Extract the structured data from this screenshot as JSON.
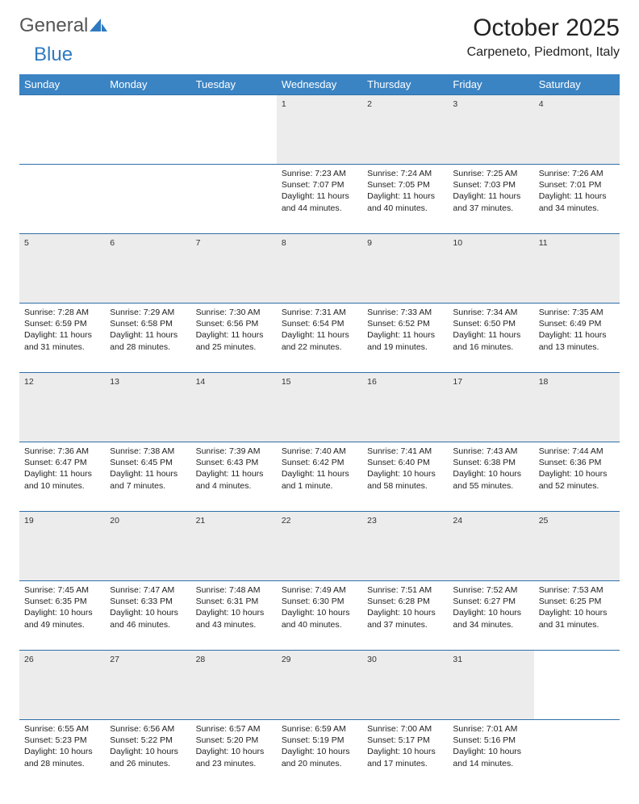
{
  "brand": {
    "part1": "General",
    "part2": "Blue"
  },
  "title": "October 2025",
  "location": "Carpeneto, Piedmont, Italy",
  "colors": {
    "header_bg": "#3b84c4",
    "header_text": "#ffffff",
    "daynum_bg": "#ececec",
    "rule": "#2f6fa8",
    "logo_blue": "#2f7ac0"
  },
  "weekdays": [
    "Sunday",
    "Monday",
    "Tuesday",
    "Wednesday",
    "Thursday",
    "Friday",
    "Saturday"
  ],
  "weeks": [
    [
      null,
      null,
      null,
      {
        "n": "1",
        "sr": "Sunrise: 7:23 AM",
        "ss": "Sunset: 7:07 PM",
        "d1": "Daylight: 11 hours",
        "d2": "and 44 minutes."
      },
      {
        "n": "2",
        "sr": "Sunrise: 7:24 AM",
        "ss": "Sunset: 7:05 PM",
        "d1": "Daylight: 11 hours",
        "d2": "and 40 minutes."
      },
      {
        "n": "3",
        "sr": "Sunrise: 7:25 AM",
        "ss": "Sunset: 7:03 PM",
        "d1": "Daylight: 11 hours",
        "d2": "and 37 minutes."
      },
      {
        "n": "4",
        "sr": "Sunrise: 7:26 AM",
        "ss": "Sunset: 7:01 PM",
        "d1": "Daylight: 11 hours",
        "d2": "and 34 minutes."
      }
    ],
    [
      {
        "n": "5",
        "sr": "Sunrise: 7:28 AM",
        "ss": "Sunset: 6:59 PM",
        "d1": "Daylight: 11 hours",
        "d2": "and 31 minutes."
      },
      {
        "n": "6",
        "sr": "Sunrise: 7:29 AM",
        "ss": "Sunset: 6:58 PM",
        "d1": "Daylight: 11 hours",
        "d2": "and 28 minutes."
      },
      {
        "n": "7",
        "sr": "Sunrise: 7:30 AM",
        "ss": "Sunset: 6:56 PM",
        "d1": "Daylight: 11 hours",
        "d2": "and 25 minutes."
      },
      {
        "n": "8",
        "sr": "Sunrise: 7:31 AM",
        "ss": "Sunset: 6:54 PM",
        "d1": "Daylight: 11 hours",
        "d2": "and 22 minutes."
      },
      {
        "n": "9",
        "sr": "Sunrise: 7:33 AM",
        "ss": "Sunset: 6:52 PM",
        "d1": "Daylight: 11 hours",
        "d2": "and 19 minutes."
      },
      {
        "n": "10",
        "sr": "Sunrise: 7:34 AM",
        "ss": "Sunset: 6:50 PM",
        "d1": "Daylight: 11 hours",
        "d2": "and 16 minutes."
      },
      {
        "n": "11",
        "sr": "Sunrise: 7:35 AM",
        "ss": "Sunset: 6:49 PM",
        "d1": "Daylight: 11 hours",
        "d2": "and 13 minutes."
      }
    ],
    [
      {
        "n": "12",
        "sr": "Sunrise: 7:36 AM",
        "ss": "Sunset: 6:47 PM",
        "d1": "Daylight: 11 hours",
        "d2": "and 10 minutes."
      },
      {
        "n": "13",
        "sr": "Sunrise: 7:38 AM",
        "ss": "Sunset: 6:45 PM",
        "d1": "Daylight: 11 hours",
        "d2": "and 7 minutes."
      },
      {
        "n": "14",
        "sr": "Sunrise: 7:39 AM",
        "ss": "Sunset: 6:43 PM",
        "d1": "Daylight: 11 hours",
        "d2": "and 4 minutes."
      },
      {
        "n": "15",
        "sr": "Sunrise: 7:40 AM",
        "ss": "Sunset: 6:42 PM",
        "d1": "Daylight: 11 hours",
        "d2": "and 1 minute."
      },
      {
        "n": "16",
        "sr": "Sunrise: 7:41 AM",
        "ss": "Sunset: 6:40 PM",
        "d1": "Daylight: 10 hours",
        "d2": "and 58 minutes."
      },
      {
        "n": "17",
        "sr": "Sunrise: 7:43 AM",
        "ss": "Sunset: 6:38 PM",
        "d1": "Daylight: 10 hours",
        "d2": "and 55 minutes."
      },
      {
        "n": "18",
        "sr": "Sunrise: 7:44 AM",
        "ss": "Sunset: 6:36 PM",
        "d1": "Daylight: 10 hours",
        "d2": "and 52 minutes."
      }
    ],
    [
      {
        "n": "19",
        "sr": "Sunrise: 7:45 AM",
        "ss": "Sunset: 6:35 PM",
        "d1": "Daylight: 10 hours",
        "d2": "and 49 minutes."
      },
      {
        "n": "20",
        "sr": "Sunrise: 7:47 AM",
        "ss": "Sunset: 6:33 PM",
        "d1": "Daylight: 10 hours",
        "d2": "and 46 minutes."
      },
      {
        "n": "21",
        "sr": "Sunrise: 7:48 AM",
        "ss": "Sunset: 6:31 PM",
        "d1": "Daylight: 10 hours",
        "d2": "and 43 minutes."
      },
      {
        "n": "22",
        "sr": "Sunrise: 7:49 AM",
        "ss": "Sunset: 6:30 PM",
        "d1": "Daylight: 10 hours",
        "d2": "and 40 minutes."
      },
      {
        "n": "23",
        "sr": "Sunrise: 7:51 AM",
        "ss": "Sunset: 6:28 PM",
        "d1": "Daylight: 10 hours",
        "d2": "and 37 minutes."
      },
      {
        "n": "24",
        "sr": "Sunrise: 7:52 AM",
        "ss": "Sunset: 6:27 PM",
        "d1": "Daylight: 10 hours",
        "d2": "and 34 minutes."
      },
      {
        "n": "25",
        "sr": "Sunrise: 7:53 AM",
        "ss": "Sunset: 6:25 PM",
        "d1": "Daylight: 10 hours",
        "d2": "and 31 minutes."
      }
    ],
    [
      {
        "n": "26",
        "sr": "Sunrise: 6:55 AM",
        "ss": "Sunset: 5:23 PM",
        "d1": "Daylight: 10 hours",
        "d2": "and 28 minutes."
      },
      {
        "n": "27",
        "sr": "Sunrise: 6:56 AM",
        "ss": "Sunset: 5:22 PM",
        "d1": "Daylight: 10 hours",
        "d2": "and 26 minutes."
      },
      {
        "n": "28",
        "sr": "Sunrise: 6:57 AM",
        "ss": "Sunset: 5:20 PM",
        "d1": "Daylight: 10 hours",
        "d2": "and 23 minutes."
      },
      {
        "n": "29",
        "sr": "Sunrise: 6:59 AM",
        "ss": "Sunset: 5:19 PM",
        "d1": "Daylight: 10 hours",
        "d2": "and 20 minutes."
      },
      {
        "n": "30",
        "sr": "Sunrise: 7:00 AM",
        "ss": "Sunset: 5:17 PM",
        "d1": "Daylight: 10 hours",
        "d2": "and 17 minutes."
      },
      {
        "n": "31",
        "sr": "Sunrise: 7:01 AM",
        "ss": "Sunset: 5:16 PM",
        "d1": "Daylight: 10 hours",
        "d2": "and 14 minutes."
      },
      null
    ]
  ]
}
